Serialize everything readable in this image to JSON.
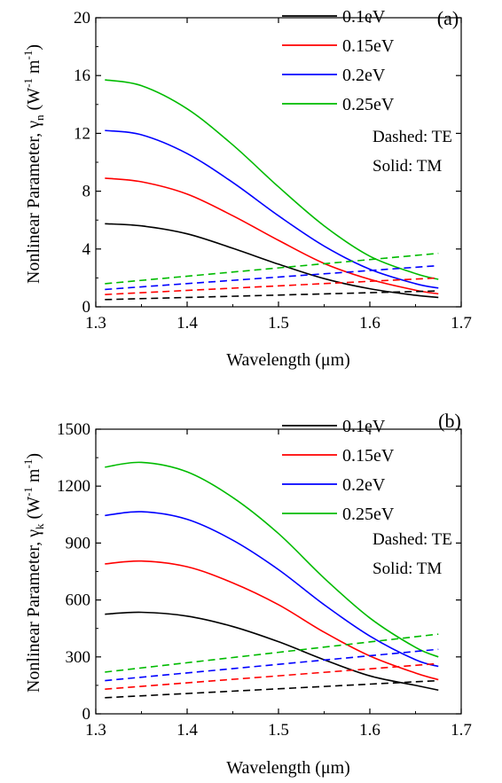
{
  "chart_data": [
    {
      "type": "line",
      "panel_label": "(a)",
      "xlabel": "Wavelength (μm)",
      "ylabel": {
        "prefix": "Nonlinear Parameter, γ",
        "sub": "n",
        "unit_open": " (W",
        "sup1": "-1",
        "unit_mid": " m",
        "sup2": "-1",
        "unit_close": ")"
      },
      "xlim": [
        1.3,
        1.7
      ],
      "ylim": [
        0,
        20
      ],
      "x_ticks": [
        1.3,
        1.4,
        1.5,
        1.6,
        1.7
      ],
      "y_ticks": [
        0,
        4,
        8,
        12,
        16,
        20
      ],
      "x_tick_labels": [
        "1.3",
        "1.4",
        "1.5",
        "1.6",
        "1.7"
      ],
      "y_tick_labels": [
        "0",
        "4",
        "8",
        "12",
        "16",
        "20"
      ],
      "annotations": [
        "Dashed: TE",
        "Solid: TM"
      ],
      "legend_position": "top-right",
      "series": [
        {
          "name": "0.1eV",
          "color": "#000000",
          "style": "solid",
          "x": [
            1.31,
            1.35,
            1.4,
            1.45,
            1.5,
            1.55,
            1.6,
            1.65,
            1.675
          ],
          "values": [
            5.75,
            5.6,
            5.05,
            4.05,
            2.95,
            1.95,
            1.25,
            0.8,
            0.65
          ]
        },
        {
          "name": "0.15eV",
          "color": "#ff0000",
          "style": "solid",
          "x": [
            1.31,
            1.35,
            1.4,
            1.45,
            1.5,
            1.55,
            1.6,
            1.65,
            1.675
          ],
          "values": [
            8.9,
            8.65,
            7.8,
            6.3,
            4.6,
            3.0,
            1.9,
            1.15,
            0.9
          ]
        },
        {
          "name": "0.2eV",
          "color": "#0000ff",
          "style": "solid",
          "x": [
            1.31,
            1.35,
            1.4,
            1.45,
            1.5,
            1.55,
            1.6,
            1.65,
            1.675
          ],
          "values": [
            12.2,
            11.9,
            10.6,
            8.6,
            6.3,
            4.2,
            2.6,
            1.6,
            1.3
          ]
        },
        {
          "name": "0.25eV",
          "color": "#00bb00",
          "style": "solid",
          "x": [
            1.31,
            1.35,
            1.4,
            1.45,
            1.5,
            1.55,
            1.6,
            1.65,
            1.675
          ],
          "values": [
            15.7,
            15.3,
            13.7,
            11.2,
            8.3,
            5.6,
            3.5,
            2.3,
            1.9
          ]
        },
        {
          "name": "0.1eV TE",
          "color": "#000000",
          "style": "dashed",
          "x": [
            1.31,
            1.675
          ],
          "values": [
            0.5,
            1.1
          ]
        },
        {
          "name": "0.15eV TE",
          "color": "#ff0000",
          "style": "dashed",
          "x": [
            1.31,
            1.675
          ],
          "values": [
            0.85,
            2.0
          ]
        },
        {
          "name": "0.2eV TE",
          "color": "#0000ff",
          "style": "dashed",
          "x": [
            1.31,
            1.675
          ],
          "values": [
            1.2,
            2.85
          ]
        },
        {
          "name": "0.25eV TE",
          "color": "#00bb00",
          "style": "dashed",
          "x": [
            1.31,
            1.675
          ],
          "values": [
            1.6,
            3.7
          ]
        }
      ]
    },
    {
      "type": "line",
      "panel_label": "(b)",
      "xlabel": "Wavelength (μm)",
      "ylabel": {
        "prefix": "Nonlinear Parameter, γ",
        "sub": "k",
        "unit_open": " (W",
        "sup1": "-1",
        "unit_mid": " m",
        "sup2": "-1",
        "unit_close": ")"
      },
      "xlim": [
        1.3,
        1.7
      ],
      "ylim": [
        0,
        1500
      ],
      "x_ticks": [
        1.3,
        1.4,
        1.5,
        1.6,
        1.7
      ],
      "y_ticks": [
        0,
        300,
        600,
        900,
        1200,
        1500
      ],
      "x_tick_labels": [
        "1.3",
        "1.4",
        "1.5",
        "1.6",
        "1.7"
      ],
      "y_tick_labels": [
        "0",
        "300",
        "600",
        "900",
        "1200",
        "1500"
      ],
      "annotations": [
        "Dashed: TE",
        "Solid: TM"
      ],
      "legend_position": "top-right",
      "series": [
        {
          "name": "0.1eV",
          "color": "#000000",
          "style": "solid",
          "x": [
            1.31,
            1.35,
            1.4,
            1.45,
            1.5,
            1.55,
            1.6,
            1.65,
            1.675
          ],
          "values": [
            525,
            535,
            515,
            460,
            380,
            285,
            200,
            150,
            125
          ]
        },
        {
          "name": "0.15eV",
          "color": "#ff0000",
          "style": "solid",
          "x": [
            1.31,
            1.35,
            1.4,
            1.45,
            1.5,
            1.55,
            1.6,
            1.65,
            1.675
          ],
          "values": [
            790,
            805,
            775,
            690,
            575,
            430,
            305,
            215,
            180
          ]
        },
        {
          "name": "0.2eV",
          "color": "#0000ff",
          "style": "solid",
          "x": [
            1.31,
            1.35,
            1.4,
            1.45,
            1.5,
            1.55,
            1.6,
            1.65,
            1.675
          ],
          "values": [
            1045,
            1065,
            1025,
            915,
            760,
            575,
            410,
            285,
            250
          ]
        },
        {
          "name": "0.25eV",
          "color": "#00bb00",
          "style": "solid",
          "x": [
            1.31,
            1.35,
            1.4,
            1.45,
            1.5,
            1.55,
            1.6,
            1.65,
            1.675
          ],
          "values": [
            1300,
            1325,
            1275,
            1140,
            950,
            715,
            505,
            350,
            300
          ]
        },
        {
          "name": "0.1eV TE",
          "color": "#000000",
          "style": "dashed",
          "x": [
            1.31,
            1.675
          ],
          "values": [
            85,
            175
          ]
        },
        {
          "name": "0.15eV TE",
          "color": "#ff0000",
          "style": "dashed",
          "x": [
            1.31,
            1.675
          ],
          "values": [
            130,
            265
          ]
        },
        {
          "name": "0.2eV TE",
          "color": "#0000ff",
          "style": "dashed",
          "x": [
            1.31,
            1.675
          ],
          "values": [
            175,
            340
          ]
        },
        {
          "name": "0.25eV TE",
          "color": "#00bb00",
          "style": "dashed",
          "x": [
            1.31,
            1.675
          ],
          "values": [
            220,
            420
          ]
        }
      ]
    }
  ]
}
